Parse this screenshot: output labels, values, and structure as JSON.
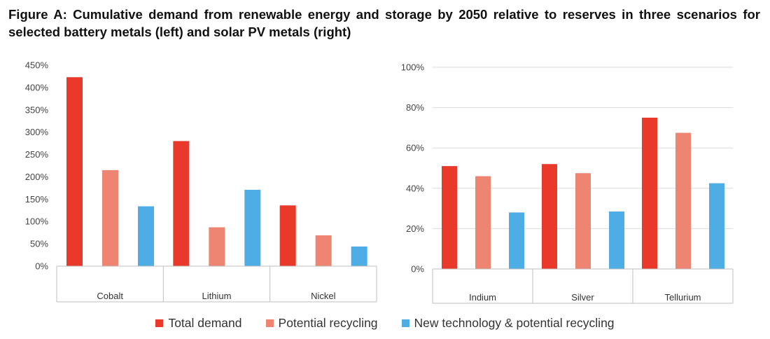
{
  "title": "Figure A: Cumulative demand from renewable energy and storage by 2050 relative to reserves in three scenarios for selected battery metals (left) and solar PV metals (right)",
  "colors": {
    "total": "#E8392A",
    "recycling": "#EE8572",
    "newtech": "#4FADE6",
    "grid": "#D9D9D9",
    "axis": "#BFBFBF"
  },
  "legend": [
    {
      "label": "Total demand",
      "color_key": "total"
    },
    {
      "label": "Potential recycling",
      "color_key": "recycling"
    },
    {
      "label": "New technology & potential recycling",
      "color_key": "newtech"
    }
  ],
  "chart_data": [
    {
      "type": "bar",
      "categories": [
        "Cobalt",
        "Lithium",
        "Nickel"
      ],
      "series": [
        {
          "name": "Total demand",
          "values": [
            423,
            280,
            136
          ]
        },
        {
          "name": "Potential recycling",
          "values": [
            215,
            87,
            69
          ]
        },
        {
          "name": "New technology & potential recycling",
          "values": [
            134,
            171,
            44
          ]
        }
      ],
      "ylim": [
        0,
        450
      ],
      "yticks": [
        "0%",
        "50%",
        "100%",
        "150%",
        "200%",
        "250%",
        "300%",
        "350%",
        "400%",
        "450%"
      ],
      "grid": false
    },
    {
      "type": "bar",
      "categories": [
        "Indium",
        "Silver",
        "Tellurium"
      ],
      "series": [
        {
          "name": "Total demand",
          "values": [
            51,
            52,
            75
          ]
        },
        {
          "name": "Potential recycling",
          "values": [
            46,
            47.5,
            67.5
          ]
        },
        {
          "name": "New technology & potential recycling",
          "values": [
            28,
            28.5,
            42.5
          ]
        }
      ],
      "ylim": [
        0,
        100
      ],
      "yticks": [
        "0%",
        "20%",
        "40%",
        "60%",
        "80%",
        "100%"
      ],
      "grid": true
    }
  ]
}
